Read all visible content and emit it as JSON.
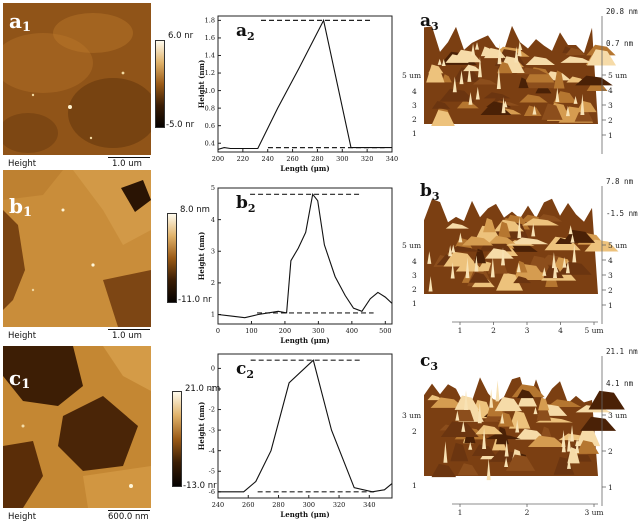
{
  "panels_2d": [
    {
      "label_letter": "a",
      "label_sub": "1",
      "caption": "Height",
      "scale": "1.0 um",
      "cmax": "6.0 nr",
      "cmin": "-5.0 nr"
    },
    {
      "label_letter": "b",
      "label_sub": "1",
      "caption": "Height",
      "scale": "1.0 um",
      "cmax": "8.0 nm",
      "cmin": "-11.0 nr"
    },
    {
      "label_letter": "c",
      "label_sub": "1",
      "caption": "Height",
      "scale": "600.0 nm",
      "cmax": "21.0 nm",
      "cmin": "-13.0 nr"
    }
  ],
  "panels_3d": [
    {
      "label_letter": "a",
      "label_sub": "3",
      "ztop": "20.8 nm",
      "zmid": "0.7 nm",
      "yunit": "5 um",
      "left_ticks": [
        "4",
        "3",
        "2",
        "1"
      ],
      "right_ticks": [
        "5 um",
        "4",
        "3",
        "2",
        "1"
      ],
      "bottom_ticks": []
    },
    {
      "label_letter": "b",
      "label_sub": "3",
      "ztop": "7.8 nm",
      "zmid": "-1.5 nm",
      "yunit": "5 um",
      "left_ticks": [
        "4",
        "3",
        "2",
        "1"
      ],
      "right_ticks": [
        "5 um",
        "4",
        "3",
        "2",
        "1"
      ],
      "bottom_ticks": [
        "1",
        "2",
        "3",
        "4",
        "5 um"
      ]
    },
    {
      "label_letter": "c",
      "label_sub": "3",
      "ztop": "21.1 nm",
      "zmid": "4.1 nm",
      "yunit": "3 um",
      "left_ticks": [
        "2",
        "1"
      ],
      "right_ticks": [
        "3 um",
        "2",
        "1"
      ],
      "bottom_ticks": [
        "1",
        "2",
        "3 um"
      ]
    }
  ],
  "chart_data": [
    {
      "type": "line",
      "panel_letter": "a",
      "panel_sub": "2",
      "xlabel": "Length (μm)",
      "ylabel": "Height (nm)",
      "xlim": [
        200,
        340
      ],
      "ylim": [
        0.3,
        1.85
      ],
      "xticks": [
        200,
        220,
        240,
        260,
        280,
        300,
        320,
        340
      ],
      "yticks": [
        0.4,
        0.6,
        0.8,
        1.0,
        1.2,
        1.4,
        1.6,
        1.8
      ],
      "x": [
        200,
        205,
        210,
        220,
        232,
        248,
        265,
        285,
        307,
        320,
        340
      ],
      "y": [
        0.33,
        0.35,
        0.34,
        0.34,
        0.34,
        0.8,
        1.25,
        1.8,
        0.35,
        0.35,
        0.35
      ],
      "ref_lines": [
        1.8,
        0.35
      ]
    },
    {
      "type": "line",
      "panel_letter": "b",
      "panel_sub": "2",
      "xlabel": "Length (μm)",
      "ylabel": "Height (nm)",
      "xlim": [
        0,
        520
      ],
      "ylim": [
        0.7,
        5.0
      ],
      "xticks": [
        0,
        100,
        200,
        300,
        400,
        500
      ],
      "yticks": [
        1,
        2,
        3,
        4,
        5
      ],
      "x": [
        0,
        40,
        80,
        120,
        150,
        180,
        205,
        218,
        240,
        262,
        283,
        298,
        318,
        350,
        380,
        405,
        430,
        455,
        478,
        500,
        520
      ],
      "y": [
        1.0,
        0.95,
        0.9,
        1.0,
        1.05,
        1.1,
        1.05,
        2.7,
        3.1,
        3.6,
        4.8,
        4.6,
        3.2,
        2.2,
        1.6,
        1.2,
        1.1,
        1.5,
        1.7,
        1.55,
        1.35
      ],
      "ref_lines": [
        4.8,
        1.05
      ]
    },
    {
      "type": "line",
      "panel_letter": "c",
      "panel_sub": "2",
      "xlabel": "Length (μm)",
      "ylabel": "Height (nm)",
      "xlim": [
        240,
        355
      ],
      "ylim": [
        -6.3,
        0.7
      ],
      "xticks": [
        240,
        260,
        280,
        300,
        320,
        340
      ],
      "yticks": [
        0,
        -1,
        -2,
        -3,
        -4,
        -5,
        -6
      ],
      "x": [
        240,
        250,
        257,
        265,
        275,
        287,
        303,
        315,
        330,
        342,
        350,
        355
      ],
      "y": [
        -6.0,
        -6.0,
        -6.0,
        -5.5,
        -4.0,
        -0.7,
        0.4,
        -3.0,
        -5.8,
        -6.0,
        -5.9,
        -5.6
      ],
      "ref_lines": [
        0.4,
        -6.0
      ]
    }
  ]
}
